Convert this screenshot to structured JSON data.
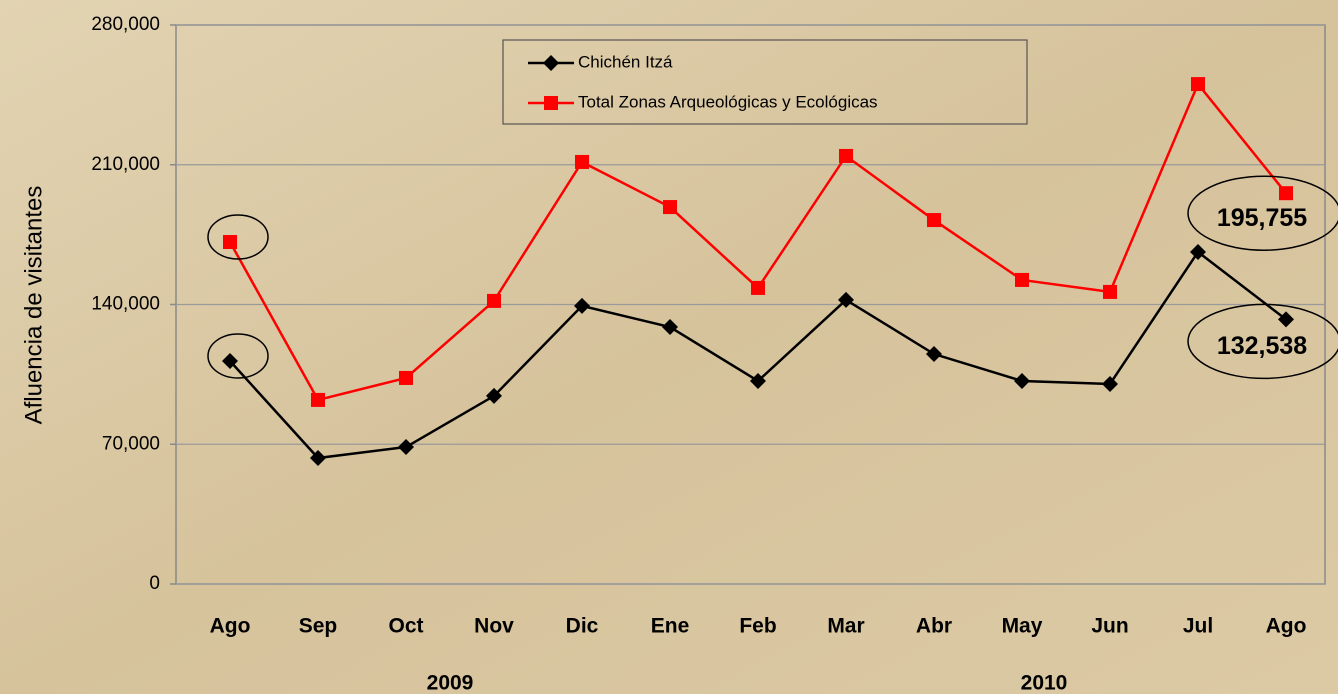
{
  "chart_data": {
    "type": "line",
    "y_label": "Afluencia de visitantes",
    "categories": [
      "Ago",
      "Sep",
      "Oct",
      "Nov",
      "Dic",
      "Ene",
      "Feb",
      "Mar",
      "Abr",
      "May",
      "Jun",
      "Jul",
      "Ago"
    ],
    "annotations": [
      "2009",
      "2010"
    ],
    "series": [
      {
        "name": "Chichén Itzá",
        "color": "#000000",
        "marker": "diamond",
        "values": [
          111700,
          63100,
          68600,
          94200,
          139300,
          128700,
          101700,
          142300,
          115200,
          101700,
          100200,
          166300,
          132538
        ],
        "value_labels": [
          null,
          null,
          null,
          null,
          null,
          null,
          null,
          null,
          null,
          null,
          null,
          null,
          "132,538"
        ]
      },
      {
        "name": "Total Zonas Arqueológicas y Ecológicas",
        "color": "#ff0000",
        "marker": "square",
        "values": [
          171300,
          92200,
          103200,
          141800,
          211400,
          188800,
          148300,
          214400,
          182300,
          152300,
          146300,
          250400,
          195755
        ],
        "value_labels": [
          null,
          null,
          null,
          null,
          null,
          null,
          null,
          null,
          null,
          null,
          null,
          null,
          "195,755"
        ]
      }
    ],
    "ylim": [
      0,
      280000
    ],
    "yticks": [
      0,
      {
        "value": 70000,
        "label": "70,000"
      },
      {
        "value": 140000,
        "label": "140,000"
      },
      {
        "value": 210000,
        "label": "210,000"
      },
      {
        "value": 280000,
        "label": "280,000"
      }
    ],
    "grid": true
  }
}
